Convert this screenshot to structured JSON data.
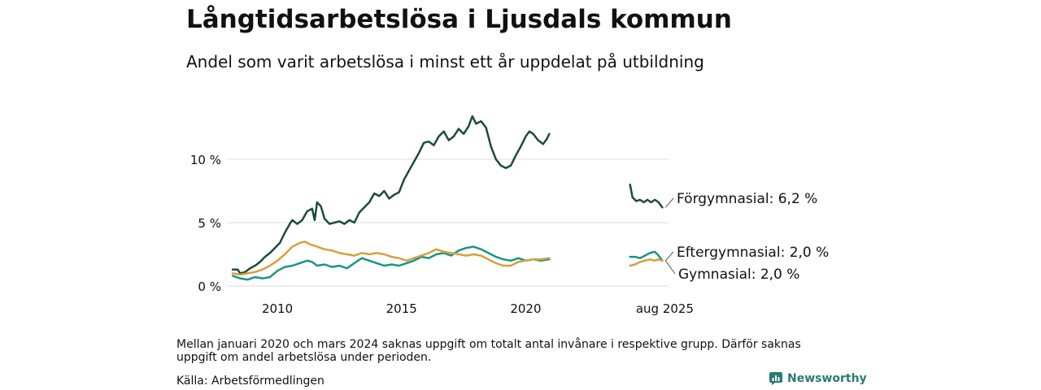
{
  "title": "Långtidsarbetslösa i Ljusdals kommun",
  "subtitle": "Andel som varit arbetslösa i minst ett år uppdelat på utbildning",
  "footnote": "Mellan januari 2020 och mars 2024 saknas uppgift om totalt antal invånare i respektive grupp. Därför saknas uppgift om andel arbetslösa under perioden.",
  "source": "Källa: Arbetsförmedlingen",
  "brand": "Newsworthy",
  "colors": {
    "forgymnasial": "#1e4a40",
    "eftergymnasial": "#1a9484",
    "gymnasial": "#d6a03e",
    "grid": "#dddddd",
    "text": "#111111",
    "brand": "#2b7a74"
  },
  "chart_data": {
    "type": "line",
    "ylim": [
      0,
      15
    ],
    "yticks": [
      {
        "value": 0,
        "label": "0 %"
      },
      {
        "value": 5,
        "label": "5 %"
      },
      {
        "value": 10,
        "label": "10 %"
      }
    ],
    "xticks": [
      {
        "value": 2010,
        "label": "2010"
      },
      {
        "value": 2015,
        "label": "2015"
      },
      {
        "value": 2020,
        "label": "2020"
      },
      {
        "value": 2025.6,
        "label": "aug 2025"
      }
    ],
    "xlim": [
      2008.0,
      2025.75
    ],
    "grid": true,
    "series": [
      {
        "name": "Förgymnasial",
        "end_label": "Förgymnasial: 6,2 %",
        "color": "#1e4a40",
        "segments": [
          [
            [
              2008.2,
              1.3
            ],
            [
              2008.4,
              1.3
            ],
            [
              2008.5,
              1.0
            ],
            [
              2008.7,
              1.1
            ],
            [
              2008.9,
              1.4
            ],
            [
              2009.1,
              1.6
            ],
            [
              2009.3,
              1.9
            ],
            [
              2009.5,
              2.3
            ],
            [
              2009.7,
              2.6
            ],
            [
              2009.9,
              3.0
            ],
            [
              2010.1,
              3.4
            ],
            [
              2010.3,
              4.2
            ],
            [
              2010.5,
              4.9
            ],
            [
              2010.6,
              5.2
            ],
            [
              2010.8,
              4.9
            ],
            [
              2011.0,
              5.2
            ],
            [
              2011.2,
              5.9
            ],
            [
              2011.4,
              6.1
            ],
            [
              2011.5,
              5.2
            ],
            [
              2011.6,
              6.6
            ],
            [
              2011.75,
              6.3
            ],
            [
              2011.9,
              5.3
            ],
            [
              2012.1,
              4.9
            ],
            [
              2012.3,
              5.0
            ],
            [
              2012.5,
              5.1
            ],
            [
              2012.7,
              4.9
            ],
            [
              2012.9,
              5.2
            ],
            [
              2013.1,
              5.0
            ],
            [
              2013.3,
              5.8
            ],
            [
              2013.5,
              6.2
            ],
            [
              2013.7,
              6.6
            ],
            [
              2013.9,
              7.3
            ],
            [
              2014.1,
              7.1
            ],
            [
              2014.3,
              7.5
            ],
            [
              2014.5,
              6.9
            ],
            [
              2014.7,
              7.2
            ],
            [
              2014.9,
              7.4
            ],
            [
              2015.1,
              8.4
            ],
            [
              2015.3,
              9.1
            ],
            [
              2015.5,
              9.8
            ],
            [
              2015.7,
              10.5
            ],
            [
              2015.9,
              11.3
            ],
            [
              2016.1,
              11.4
            ],
            [
              2016.3,
              11.1
            ],
            [
              2016.5,
              11.8
            ],
            [
              2016.7,
              12.2
            ],
            [
              2016.9,
              11.5
            ],
            [
              2017.1,
              11.8
            ],
            [
              2017.3,
              12.4
            ],
            [
              2017.5,
              12.0
            ],
            [
              2017.7,
              12.6
            ],
            [
              2017.85,
              13.4
            ],
            [
              2018.0,
              12.8
            ],
            [
              2018.2,
              13.0
            ],
            [
              2018.4,
              12.5
            ],
            [
              2018.6,
              11.0
            ],
            [
              2018.8,
              10.0
            ],
            [
              2019.0,
              9.5
            ],
            [
              2019.2,
              9.3
            ],
            [
              2019.4,
              9.5
            ],
            [
              2019.6,
              10.3
            ],
            [
              2019.8,
              11.0
            ],
            [
              2020.0,
              11.8
            ],
            [
              2020.15,
              12.2
            ],
            [
              2020.3,
              12.0
            ],
            [
              2020.5,
              11.5
            ],
            [
              2020.7,
              11.2
            ],
            [
              2020.85,
              11.6
            ],
            [
              2020.95,
              12.0
            ]
          ],
          [
            [
              2024.2,
              8.0
            ],
            [
              2024.3,
              7.0
            ],
            [
              2024.45,
              6.7
            ],
            [
              2024.6,
              6.8
            ],
            [
              2024.75,
              6.6
            ],
            [
              2024.9,
              6.8
            ],
            [
              2025.05,
              6.6
            ],
            [
              2025.2,
              6.8
            ],
            [
              2025.35,
              6.6
            ],
            [
              2025.5,
              6.2
            ]
          ]
        ]
      },
      {
        "name": "Eftergymnasial",
        "end_label": "Eftergymnasial: 2,0 %",
        "color": "#1a9484",
        "segments": [
          [
            [
              2008.2,
              0.8
            ],
            [
              2008.5,
              0.6
            ],
            [
              2008.8,
              0.5
            ],
            [
              2009.1,
              0.7
            ],
            [
              2009.4,
              0.6
            ],
            [
              2009.7,
              0.7
            ],
            [
              2010.0,
              1.2
            ],
            [
              2010.3,
              1.5
            ],
            [
              2010.6,
              1.6
            ],
            [
              2010.9,
              1.8
            ],
            [
              2011.2,
              2.0
            ],
            [
              2011.4,
              1.9
            ],
            [
              2011.6,
              1.6
            ],
            [
              2011.9,
              1.7
            ],
            [
              2012.2,
              1.5
            ],
            [
              2012.5,
              1.6
            ],
            [
              2012.8,
              1.4
            ],
            [
              2013.1,
              1.8
            ],
            [
              2013.4,
              2.2
            ],
            [
              2013.7,
              2.0
            ],
            [
              2014.0,
              1.8
            ],
            [
              2014.3,
              1.6
            ],
            [
              2014.6,
              1.7
            ],
            [
              2014.9,
              1.6
            ],
            [
              2015.2,
              1.8
            ],
            [
              2015.5,
              2.0
            ],
            [
              2015.8,
              2.3
            ],
            [
              2016.1,
              2.2
            ],
            [
              2016.4,
              2.5
            ],
            [
              2016.7,
              2.6
            ],
            [
              2017.0,
              2.4
            ],
            [
              2017.3,
              2.8
            ],
            [
              2017.6,
              3.0
            ],
            [
              2017.9,
              3.1
            ],
            [
              2018.2,
              2.9
            ],
            [
              2018.5,
              2.6
            ],
            [
              2018.8,
              2.3
            ],
            [
              2019.1,
              2.1
            ],
            [
              2019.4,
              2.0
            ],
            [
              2019.7,
              2.2
            ],
            [
              2020.0,
              2.0
            ],
            [
              2020.3,
              2.1
            ],
            [
              2020.6,
              2.0
            ],
            [
              2020.95,
              2.1
            ]
          ],
          [
            [
              2024.2,
              2.3
            ],
            [
              2024.4,
              2.3
            ],
            [
              2024.6,
              2.2
            ],
            [
              2024.8,
              2.4
            ],
            [
              2025.0,
              2.6
            ],
            [
              2025.2,
              2.7
            ],
            [
              2025.35,
              2.4
            ],
            [
              2025.5,
              2.0
            ]
          ]
        ]
      },
      {
        "name": "Gymnasial",
        "end_label": "Gymnasial: 2,0 %",
        "color": "#d6a03e",
        "segments": [
          [
            [
              2008.2,
              1.0
            ],
            [
              2008.5,
              0.9
            ],
            [
              2008.8,
              1.0
            ],
            [
              2009.1,
              1.1
            ],
            [
              2009.4,
              1.3
            ],
            [
              2009.7,
              1.6
            ],
            [
              2010.0,
              2.0
            ],
            [
              2010.3,
              2.5
            ],
            [
              2010.6,
              3.1
            ],
            [
              2010.9,
              3.4
            ],
            [
              2011.1,
              3.5
            ],
            [
              2011.3,
              3.3
            ],
            [
              2011.6,
              3.1
            ],
            [
              2011.9,
              2.9
            ],
            [
              2012.2,
              2.8
            ],
            [
              2012.5,
              2.6
            ],
            [
              2012.8,
              2.5
            ],
            [
              2013.1,
              2.4
            ],
            [
              2013.4,
              2.6
            ],
            [
              2013.7,
              2.5
            ],
            [
              2014.0,
              2.6
            ],
            [
              2014.3,
              2.5
            ],
            [
              2014.6,
              2.3
            ],
            [
              2014.9,
              2.2
            ],
            [
              2015.2,
              2.0
            ],
            [
              2015.5,
              2.2
            ],
            [
              2015.8,
              2.4
            ],
            [
              2016.1,
              2.6
            ],
            [
              2016.4,
              2.9
            ],
            [
              2016.7,
              2.7
            ],
            [
              2017.0,
              2.6
            ],
            [
              2017.3,
              2.5
            ],
            [
              2017.6,
              2.4
            ],
            [
              2017.9,
              2.5
            ],
            [
              2018.2,
              2.4
            ],
            [
              2018.5,
              2.1
            ],
            [
              2018.8,
              1.8
            ],
            [
              2019.1,
              1.6
            ],
            [
              2019.4,
              1.6
            ],
            [
              2019.7,
              1.9
            ],
            [
              2020.0,
              2.0
            ],
            [
              2020.3,
              2.1
            ],
            [
              2020.6,
              2.1
            ],
            [
              2020.95,
              2.2
            ]
          ],
          [
            [
              2024.2,
              1.6
            ],
            [
              2024.4,
              1.7
            ],
            [
              2024.6,
              1.9
            ],
            [
              2024.8,
              2.0
            ],
            [
              2025.0,
              2.1
            ],
            [
              2025.2,
              2.0
            ],
            [
              2025.35,
              2.1
            ],
            [
              2025.5,
              2.0
            ]
          ]
        ]
      }
    ]
  }
}
